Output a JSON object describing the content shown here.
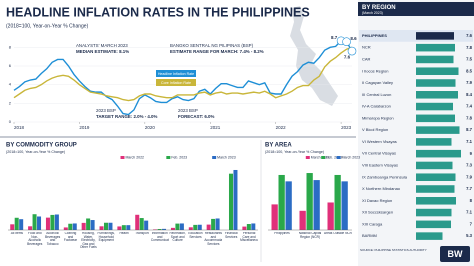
{
  "chart_data": [
    {
      "type": "line",
      "title": "HEADLINE INFLATION RATES IN THE PHILIPPINES",
      "subtitle": "(2018=100, Year-on-Year % Change)",
      "categories": [
        "2018",
        null,
        null,
        null,
        null,
        null,
        null,
        null,
        null,
        null,
        null,
        null,
        "2019",
        null,
        null,
        null,
        null,
        null,
        null,
        null,
        null,
        null,
        null,
        null,
        "2020",
        null,
        null,
        null,
        null,
        null,
        null,
        null,
        null,
        null,
        null,
        null,
        "2021",
        null,
        null,
        null,
        null,
        null,
        null,
        null,
        null,
        null,
        null,
        null,
        "2022",
        null,
        null,
        null,
        null,
        null,
        null,
        null,
        null,
        null,
        null,
        null,
        "2023",
        null,
        null
      ],
      "series": [
        {
          "name": "Headline Inflation Rate",
          "color": "#1f8fd6",
          "values": [
            3.4,
            3.8,
            4.3,
            4.5,
            4.6,
            5.2,
            5.7,
            6.4,
            6.7,
            6.7,
            6.0,
            5.1,
            4.4,
            3.8,
            3.3,
            3.2,
            3.2,
            2.7,
            2.4,
            1.7,
            0.9,
            0.8,
            1.3,
            2.5,
            2.9,
            2.6,
            2.2,
            2.1,
            2.1,
            2.5,
            2.7,
            2.4,
            2.3,
            2.5,
            3.3,
            3.5,
            3.0,
            3.6,
            4.1,
            4.1,
            3.9,
            3.7,
            3.7,
            4.4,
            4.2,
            4.0,
            4.2,
            3.1,
            3.0,
            3.0,
            4.0,
            4.9,
            5.4,
            6.1,
            6.4,
            6.3,
            6.9,
            7.7,
            8.0,
            8.1,
            8.7,
            8.6,
            7.6
          ]
        },
        {
          "name": "Core Inflation Rate",
          "color": "#c9b63a",
          "values": [
            2.6,
            3.0,
            3.4,
            3.6,
            3.7,
            4.0,
            4.4,
            4.7,
            4.9,
            5.0,
            4.9,
            4.5,
            4.0,
            3.6,
            3.2,
            3.1,
            3.0,
            2.8,
            2.7,
            2.6,
            2.4,
            2.3,
            2.4,
            2.8,
            3.0,
            3.0,
            2.8,
            2.7,
            2.6,
            2.6,
            2.9,
            2.9,
            2.9,
            2.9,
            3.1,
            3.2,
            2.9,
            3.1,
            3.2,
            3.0,
            3.1,
            3.1,
            3.0,
            3.1,
            3.2,
            3.1,
            3.3,
            3.0,
            2.6,
            2.8,
            3.0,
            3.3,
            3.7,
            3.9,
            3.9,
            4.5,
            4.9,
            5.9,
            6.5,
            6.9,
            7.4,
            7.8,
            8.0
          ]
        }
      ],
      "ylim": [
        0,
        9
      ],
      "yticks": [
        0,
        2,
        4,
        6,
        8
      ],
      "annotations": [
        "ANALYSTS' MARCH 2023",
        "MEDIAN ESTIMATE: 8.1%",
        "BANGKO SENTRAL NG PILIPINAS (BSP)",
        "ESTIMATE RANGE FOR MARCH: 7.4% - 8.2%",
        "2023 BSP",
        "TARGET RANGE: 2.0% - 4.0%",
        "2023 BSP",
        "FORECAST: 6.0%"
      ]
    },
    {
      "type": "bar",
      "title": "BY COMMODITY GROUP",
      "subtitle": "(2018=100, Year-on-Year % Change)",
      "categories": [
        "All Items",
        "Food and Non-Alcoholic Beverages",
        "Alcoholic Beverages and Tobacco",
        "Clothing and Footwear",
        "Housing, Water, Electricity, Gas and Other Fuels",
        "Furnishings, Household Equipment",
        "Health",
        "Transport",
        "Information and Communication",
        "Recreation, Sport and Culture",
        "Education Services",
        "Restaurants and Accommodation Services",
        "Financial Services",
        "Personal Care and Miscellaneous"
      ],
      "series": [
        {
          "name": "March 2022",
          "color": "#e0307a",
          "values": [
            4.0,
            2.6,
            8.7,
            1.8,
            5.0,
            2.6,
            2.5,
            10.7,
            0.4,
            1.5,
            1.9,
            3.8,
            0.0,
            2.4
          ]
        },
        {
          "name": "Feb. 2023",
          "color": "#2aa84a",
          "values": [
            8.6,
            11.1,
            10.6,
            4.4,
            8.1,
            5.1,
            3.4,
            8.4,
            0.7,
            4.5,
            3.6,
            7.8,
            39.6,
            4.2
          ]
        },
        {
          "name": "March 2023",
          "color": "#2b6cc4",
          "values": [
            7.6,
            9.5,
            10.9,
            4.6,
            7.0,
            5.1,
            3.4,
            6.6,
            0.8,
            4.6,
            3.7,
            8.1,
            42.2,
            4.6
          ]
        }
      ],
      "ylim": [
        0,
        45
      ]
    },
    {
      "type": "bar",
      "title": "BY AREA",
      "subtitle": "(2018=100, Year-on-Year % Change)",
      "categories": [
        "Philippines",
        "National Capital Region (NCR)",
        "Areas Outside NCR"
      ],
      "series": [
        {
          "name": "March 2022",
          "color": "#e0307a",
          "values": [
            4.0,
            3.0,
            4.3
          ]
        },
        {
          "name": "Feb. 2023",
          "color": "#2aa84a",
          "values": [
            8.6,
            8.9,
            8.6
          ]
        },
        {
          "name": "March 2023",
          "color": "#2b6cc4",
          "values": [
            7.6,
            7.8,
            7.6
          ]
        }
      ],
      "ylim": [
        0,
        10
      ]
    },
    {
      "type": "barh",
      "title": "BY REGION",
      "subtitle": "(March 2023)",
      "categories": [
        "PHILIPPINES",
        "NCR",
        "CAR",
        "I Ilocos Region",
        "II Cagayan Valley",
        "III Central Luzon",
        "IV-A Calabarzon",
        "Mimaropa Region",
        "V Bicol Region",
        "VI Western Visayas",
        "VII Central Visayas",
        "VIII Eastern Visayas",
        "IX Zamboanga Peninsula",
        "X Northern Mindanao",
        "XI Davao Region",
        "XII Soccsksargen",
        "XIII Caraga",
        "BARMM"
      ],
      "values": [
        7.6,
        7.8,
        7.5,
        8.5,
        7.9,
        8.4,
        7.4,
        7.8,
        8.7,
        7.1,
        9.0,
        7.3,
        7.9,
        7.7,
        8.0,
        7.1,
        7.0,
        5.3
      ],
      "color": "#2a9a8c",
      "xlim": [
        0,
        10
      ],
      "source": "SOURCE: PHILIPPINE STATISTICS AUTHORITY",
      "logo": "BW"
    }
  ]
}
